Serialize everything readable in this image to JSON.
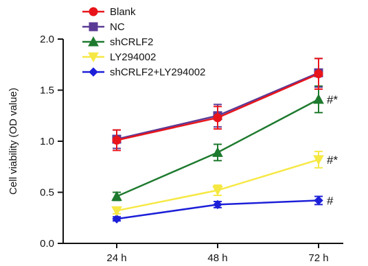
{
  "chart_data": {
    "type": "line",
    "x": [
      "24 h",
      "48 h",
      "72 h"
    ],
    "ylabel": "Cell viability (OD value)",
    "xlabel": "",
    "ylim": [
      0.0,
      2.0
    ],
    "yticks": [
      "0.0",
      "0.5",
      "1.0",
      "1.5",
      "2.0"
    ],
    "legend_position": "top-left",
    "series": [
      {
        "name": "Blank",
        "color": "#e8141a",
        "marker": "circle",
        "values": [
          1.01,
          1.23,
          1.66
        ],
        "errors": [
          0.1,
          0.11,
          0.15
        ]
      },
      {
        "name": "NC",
        "color": "#5b3a96",
        "marker": "square",
        "values": [
          1.02,
          1.25,
          1.67
        ],
        "errors": [
          0.09,
          0.11,
          0.14
        ]
      },
      {
        "name": "shCRLF2",
        "color": "#1e7a2e",
        "marker": "triangle-up",
        "values": [
          0.46,
          0.89,
          1.41
        ],
        "errors": [
          0.04,
          0.08,
          0.13
        ]
      },
      {
        "name": "LY294002",
        "color": "#f6e844",
        "marker": "triangle-down",
        "values": [
          0.32,
          0.52,
          0.82
        ],
        "errors": [
          0.03,
          0.05,
          0.08
        ]
      },
      {
        "name": "shCRLF2+LY294002",
        "color": "#1c1fd8",
        "marker": "diamond",
        "values": [
          0.24,
          0.38,
          0.42
        ],
        "errors": [
          0.02,
          0.03,
          0.04
        ]
      }
    ],
    "annotations": [
      {
        "series": "shCRLF2",
        "x": "72 h",
        "text": "#*"
      },
      {
        "series": "LY294002",
        "x": "72 h",
        "text": "#*"
      },
      {
        "series": "shCRLF2+LY294002",
        "x": "72 h",
        "text": "#"
      }
    ]
  }
}
